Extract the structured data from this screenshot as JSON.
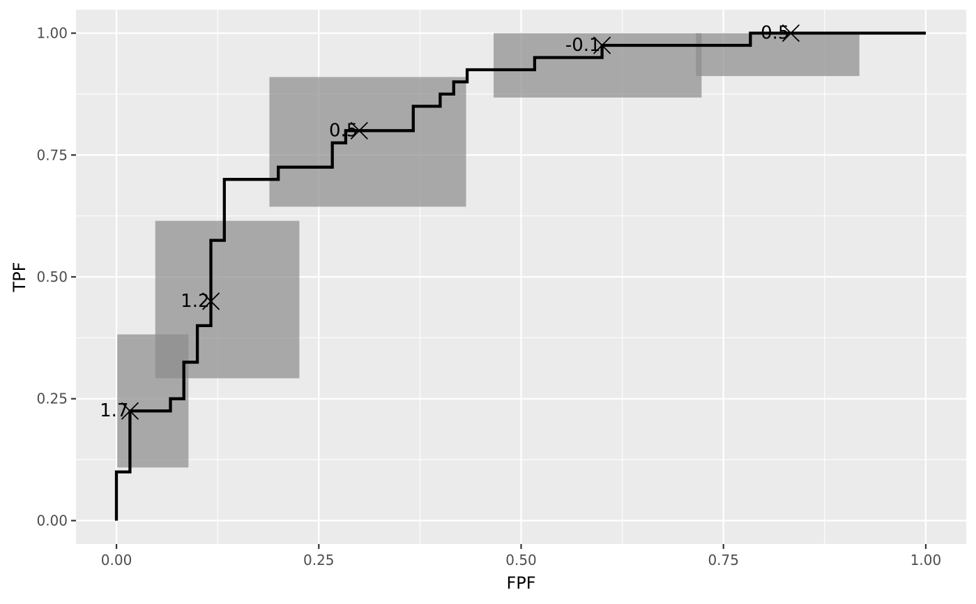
{
  "chart_data": {
    "type": "line",
    "title": "",
    "xlabel": "FPF",
    "ylabel": "TPF",
    "xlim": [
      -0.05,
      1.05
    ],
    "ylim": [
      -0.048,
      1.048
    ],
    "xticks": [
      {
        "value": 0,
        "label": "0.00"
      },
      {
        "value": 0.25,
        "label": "0.25"
      },
      {
        "value": 0.5,
        "label": "0.50"
      },
      {
        "value": 0.75,
        "label": "0.75"
      },
      {
        "value": 1,
        "label": "1.00"
      }
    ],
    "yticks": [
      {
        "value": 0,
        "label": "0.00"
      },
      {
        "value": 0.25,
        "label": "0.25"
      },
      {
        "value": 0.5,
        "label": "0.50"
      },
      {
        "value": 0.75,
        "label": "0.75"
      },
      {
        "value": 1,
        "label": "1.00"
      }
    ],
    "grid": true,
    "background": "#ebebeb",
    "line_color": "#000000",
    "rect_color": "#8c8c8c",
    "roc_curve": [
      [
        0,
        0
      ],
      [
        0,
        0.1
      ],
      [
        0.0167,
        0.1
      ],
      [
        0.0167,
        0.225
      ],
      [
        0.0667,
        0.225
      ],
      [
        0.0667,
        0.25
      ],
      [
        0.0833,
        0.25
      ],
      [
        0.0833,
        0.325
      ],
      [
        0.1,
        0.325
      ],
      [
        0.1,
        0.4
      ],
      [
        0.1167,
        0.4
      ],
      [
        0.1167,
        0.575
      ],
      [
        0.1333,
        0.575
      ],
      [
        0.1333,
        0.7
      ],
      [
        0.2,
        0.7
      ],
      [
        0.2,
        0.725
      ],
      [
        0.2667,
        0.725
      ],
      [
        0.2667,
        0.775
      ],
      [
        0.2833,
        0.775
      ],
      [
        0.2833,
        0.8
      ],
      [
        0.3667,
        0.8
      ],
      [
        0.3667,
        0.85
      ],
      [
        0.4,
        0.85
      ],
      [
        0.4,
        0.875
      ],
      [
        0.4167,
        0.875
      ],
      [
        0.4167,
        0.9
      ],
      [
        0.4333,
        0.9
      ],
      [
        0.4333,
        0.925
      ],
      [
        0.5167,
        0.925
      ],
      [
        0.5167,
        0.95
      ],
      [
        0.6,
        0.95
      ],
      [
        0.6,
        0.975
      ],
      [
        0.7833,
        0.975
      ],
      [
        0.7833,
        1
      ],
      [
        1,
        1
      ]
    ],
    "cutoff_points": [
      {
        "label": "1.7",
        "fpf": 0.0167,
        "tpf": 0.225
      },
      {
        "label": "1.2",
        "fpf": 0.1167,
        "tpf": 0.45
      },
      {
        "label": "0.5",
        "fpf": 0.3,
        "tpf": 0.8
      },
      {
        "label": "-0.1",
        "fpf": 0.6,
        "tpf": 0.975
      },
      {
        "label": "-0.5",
        "fpf": 0.8333,
        "tpf": 1.0
      }
    ],
    "confidence_regions": [
      {
        "fpf": [
          0.001,
          0.089
        ],
        "tpf": [
          0.109,
          0.382
        ]
      },
      {
        "fpf": [
          0.048,
          0.226
        ],
        "tpf": [
          0.292,
          0.615
        ]
      },
      {
        "fpf": [
          0.189,
          0.432
        ],
        "tpf": [
          0.644,
          0.91
        ]
      },
      {
        "fpf": [
          0.466,
          0.723
        ],
        "tpf": [
          0.868,
          1.0
        ]
      },
      {
        "fpf": [
          0.716,
          0.918
        ],
        "tpf": [
          0.912,
          1.0
        ]
      }
    ]
  }
}
